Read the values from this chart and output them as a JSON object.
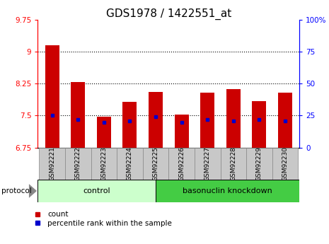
{
  "title": "GDS1978 / 1422551_at",
  "samples": [
    "GSM92221",
    "GSM92222",
    "GSM92223",
    "GSM92224",
    "GSM92225",
    "GSM92226",
    "GSM92227",
    "GSM92228",
    "GSM92229",
    "GSM92230"
  ],
  "count_values": [
    9.15,
    8.28,
    7.47,
    7.82,
    8.05,
    7.53,
    8.04,
    8.12,
    7.84,
    8.04
  ],
  "percentile_values": [
    25,
    22,
    20,
    21,
    24,
    20,
    22,
    21,
    22,
    21
  ],
  "ylim_left": [
    6.75,
    9.75
  ],
  "ylim_right": [
    0,
    100
  ],
  "yticks_left": [
    6.75,
    7.5,
    8.25,
    9.0,
    9.75
  ],
  "yticks_right": [
    0,
    25,
    50,
    75,
    100
  ],
  "ytick_labels_left": [
    "6.75",
    "7.5",
    "8.25",
    "9",
    "9.75"
  ],
  "ytick_labels_right": [
    "0",
    "25",
    "50",
    "75",
    "100%"
  ],
  "hlines": [
    7.5,
    8.25,
    9.0
  ],
  "bar_color": "#cc0000",
  "percentile_color": "#0000cc",
  "bar_width": 0.55,
  "control_label": "control",
  "knockdown_label": "basonuclin knockdown",
  "control_color": "#ccffcc",
  "knockdown_color": "#44cc44",
  "protocol_label": "protocol",
  "legend_count": "count",
  "legend_percentile": "percentile rank within the sample",
  "title_fontsize": 11,
  "tick_fontsize": 7.5,
  "label_fontsize": 6.5
}
